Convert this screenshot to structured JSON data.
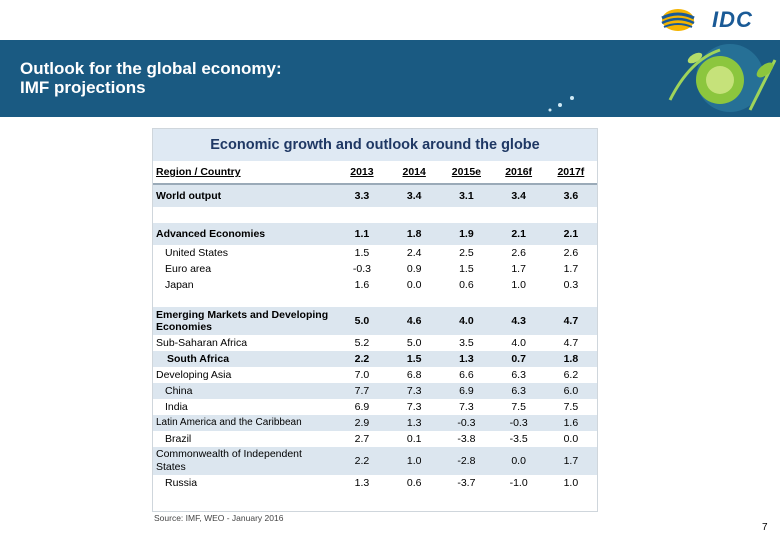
{
  "brand": {
    "logo_text": "IDC"
  },
  "banner": {
    "title_line1": "Outlook for the global economy:",
    "title_line2": "IMF projections"
  },
  "table": {
    "title": "Economic growth and outlook around the globe",
    "headers": [
      "Region / Country",
      "2013",
      "2014",
      "2015e",
      "2016f",
      "2017f"
    ],
    "rows": [
      [
        "World output",
        "3.3",
        "3.4",
        "3.1",
        "3.4",
        "3.6"
      ],
      [
        "Advanced Economies",
        "1.1",
        "1.8",
        "1.9",
        "2.1",
        "2.1"
      ],
      [
        "United States",
        "1.5",
        "2.4",
        "2.5",
        "2.6",
        "2.6"
      ],
      [
        "Euro area",
        "-0.3",
        "0.9",
        "1.5",
        "1.7",
        "1.7"
      ],
      [
        "Japan",
        "1.6",
        "0.0",
        "0.6",
        "1.0",
        "0.3"
      ],
      [
        "Emerging Markets and Developing Economies",
        "5.0",
        "4.6",
        "4.0",
        "4.3",
        "4.7"
      ],
      [
        "Sub-Saharan Africa",
        "5.2",
        "5.0",
        "3.5",
        "4.0",
        "4.7"
      ],
      [
        "South Africa",
        "2.2",
        "1.5",
        "1.3",
        "0.7",
        "1.8"
      ],
      [
        "Developing Asia",
        "7.0",
        "6.8",
        "6.6",
        "6.3",
        "6.2"
      ],
      [
        "China",
        "7.7",
        "7.3",
        "6.9",
        "6.3",
        "6.0"
      ],
      [
        "India",
        "6.9",
        "7.3",
        "7.3",
        "7.5",
        "7.5"
      ],
      [
        "Latin America and the Caribbean",
        "2.9",
        "1.3",
        "-0.3",
        "-0.3",
        "1.6"
      ],
      [
        "Brazil",
        "2.7",
        "0.1",
        "-3.8",
        "-3.5",
        "0.0"
      ],
      [
        "Commonwealth of Independent States",
        "2.2",
        "1.0",
        "-2.8",
        "0.0",
        "1.7"
      ],
      [
        "Russia",
        "1.3",
        "0.6",
        "-3.7",
        "-1.0",
        "1.0"
      ]
    ]
  },
  "source": "Source: IMF, WEO - January 2016",
  "page_number": "7",
  "colors": {
    "banner": "#1a5a82",
    "title_bg": "#dfe9f3",
    "shade": "#dce6ef",
    "brand": "#1a5a96"
  }
}
